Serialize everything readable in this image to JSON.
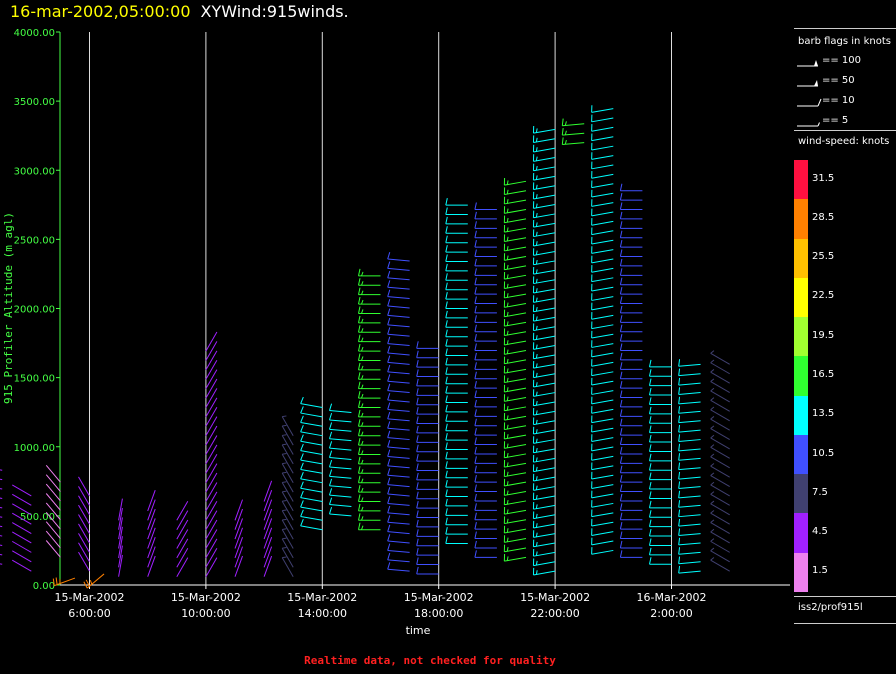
{
  "header": {
    "datetime": "16-mar-2002,05:00:00",
    "product": "XYWind:915winds."
  },
  "legend": {
    "barb_title": "barb flags in knots",
    "barbs": [
      {
        "label": "== 100",
        "kind": "pennant"
      },
      {
        "label": "== 50",
        "kind": "flag"
      },
      {
        "label": "== 10",
        "kind": "full"
      },
      {
        "label": "== 5",
        "kind": "half"
      }
    ],
    "colorbar_title": "wind-speed: knots",
    "colorbar": [
      {
        "label": "31.5",
        "color": "#ff1040"
      },
      {
        "label": "28.5",
        "color": "#ff8000"
      },
      {
        "label": "25.5",
        "color": "#ffc000"
      },
      {
        "label": "22.5",
        "color": "#ffff00"
      },
      {
        "label": "19.5",
        "color": "#a0ff30"
      },
      {
        "label": "16.5",
        "color": "#30ff30"
      },
      {
        "label": "13.5",
        "color": "#00ffff"
      },
      {
        "label": "10.5",
        "color": "#4050ff"
      },
      {
        "label": "7.5",
        "color": "#404070"
      },
      {
        "label": "4.5",
        "color": "#a020ff"
      },
      {
        "label": "1.5",
        "color": "#ee80ee"
      }
    ],
    "station": "iss2/prof915l"
  },
  "footer": "Realtime data, not checked for quality",
  "chart_data": {
    "type": "scatter",
    "xlabel": "time",
    "ylabel": "915 Profiler Altitude (m agl)",
    "ylim": [
      0,
      4000
    ],
    "xlim": [
      "2002-03-15T02:00",
      "2002-03-16T05:00"
    ],
    "grid": "vertical lines at time ticks",
    "yticks": [
      "4000.00",
      "3500.00",
      "3000.00",
      "2500.00",
      "2000.00",
      "1500.00",
      "1000.00",
      "500.00",
      "0.00"
    ],
    "xticks": [
      {
        "date": "15-Mar-2002",
        "time": "6:00:00"
      },
      {
        "date": "15-Mar-2002",
        "time": "10:00:00"
      },
      {
        "date": "15-Mar-2002",
        "time": "14:00:00"
      },
      {
        "date": "15-Mar-2002",
        "time": "18:00:00"
      },
      {
        "date": "15-Mar-2002",
        "time": "22:00:00"
      },
      {
        "date": "16-Mar-2002",
        "time": "2:00:00"
      }
    ],
    "profiles": [
      {
        "time": "02:00",
        "bottom": 50,
        "top": 120,
        "speed": 28,
        "dir": 235
      },
      {
        "time": "03:00",
        "bottom": 150,
        "top": 830,
        "speed": 4,
        "dir": 280
      },
      {
        "time": "04:00",
        "bottom": 100,
        "top": 650,
        "speed": 4,
        "dir": 300
      },
      {
        "time": "05:00",
        "bottom": 200,
        "top": 750,
        "speed": 3,
        "dir": 320
      },
      {
        "time": "05:30",
        "bottom": 50,
        "top": 90,
        "speed": 29,
        "dir": 250
      },
      {
        "time": "06:00",
        "bottom": 100,
        "top": 700,
        "speed": 4,
        "dir": 330
      },
      {
        "time": "06:30",
        "bottom": 80,
        "top": 110,
        "speed": 28,
        "dir": 230
      },
      {
        "time": "07:00",
        "bottom": 60,
        "top": 500,
        "speed": 4,
        "dir": 10
      },
      {
        "time": "08:00",
        "bottom": 60,
        "top": 550,
        "speed": 4,
        "dir": 20
      },
      {
        "time": "09:00",
        "bottom": 60,
        "top": 480,
        "speed": 4,
        "dir": 30
      },
      {
        "time": "10:00",
        "bottom": 60,
        "top": 1700,
        "speed": 4,
        "dir": 30
      },
      {
        "time": "11:00",
        "bottom": 60,
        "top": 480,
        "speed": 4,
        "dir": 20
      },
      {
        "time": "12:00",
        "bottom": 60,
        "top": 620,
        "speed": 4,
        "dir": 20
      },
      {
        "time": "13:00",
        "bottom": 60,
        "top": 1100,
        "speed": 7,
        "dir": 330
      },
      {
        "time": "14:00",
        "bottom": 400,
        "top": 1300,
        "speed": 13,
        "dir": 280
      },
      {
        "time": "15:00",
        "bottom": 500,
        "top": 1300,
        "speed": 14,
        "dir": 275
      },
      {
        "time": "16:00",
        "bottom": 400,
        "top": 2300,
        "speed": 16,
        "dir": 270
      },
      {
        "time": "17:00",
        "bottom": 100,
        "top": 2350,
        "speed": 11,
        "dir": 275
      },
      {
        "time": "18:00",
        "bottom": 80,
        "top": 1750,
        "speed": 12,
        "dir": 270
      },
      {
        "time": "19:00",
        "bottom": 300,
        "top": 2800,
        "speed": 13,
        "dir": 270
      },
      {
        "time": "20:00",
        "bottom": 200,
        "top": 2750,
        "speed": 11,
        "dir": 270
      },
      {
        "time": "21:00",
        "bottom": 200,
        "top": 2950,
        "speed": 16,
        "dir": 260
      },
      {
        "time": "22:00",
        "bottom": 100,
        "top": 3300,
        "speed": 15,
        "dir": 260
      },
      {
        "time": "23:00",
        "bottom": 3200,
        "top": 3400,
        "speed": 17,
        "dir": 265
      },
      {
        "time": "00:00",
        "bottom": 250,
        "top": 3450,
        "speed": 13,
        "dir": 260
      },
      {
        "time": "01:00",
        "bottom": 200,
        "top": 2900,
        "speed": 10,
        "dir": 270
      },
      {
        "time": "02:00",
        "bottom": 150,
        "top": 1600,
        "speed": 14,
        "dir": 270
      },
      {
        "time": "03:00",
        "bottom": 100,
        "top": 1650,
        "speed": 13,
        "dir": 265
      },
      {
        "time": "04:00",
        "bottom": 100,
        "top": 1650,
        "speed": 8,
        "dir": 300
      }
    ]
  }
}
